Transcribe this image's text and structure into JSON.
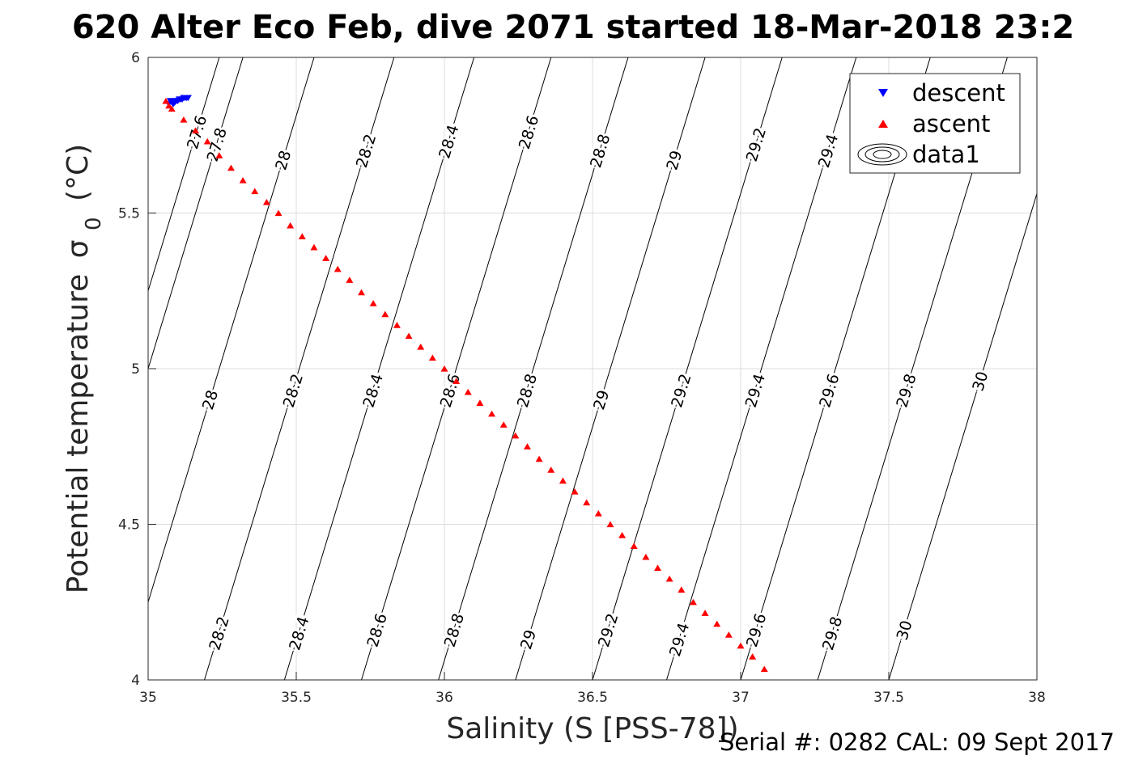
{
  "title": "620 Alter Eco Feb, dive 2071 started 18-Mar-2018 23:2",
  "footer": "Serial #: 0282  CAL: 09 Sept 2017",
  "chart_data": {
    "type": "scatter",
    "title": "620 Alter Eco Feb, dive 2071 started 18-Mar-2018 23:2",
    "xlabel": "Salinity (S [PSS-78])",
    "ylabel": "Potential temperature",
    "ylabel_sub": "0",
    "ylabel_symbol": "σ",
    "ylabel_unit": "(°C)",
    "xlim": [
      35,
      38
    ],
    "ylim": [
      4,
      6
    ],
    "xticks": [
      35,
      35.5,
      36,
      36.5,
      37,
      37.5,
      38
    ],
    "xtick_labels": [
      "35",
      "35.5",
      "36",
      "36.5",
      "37",
      "37.5",
      "38"
    ],
    "yticks": [
      4,
      4.5,
      5,
      5.5,
      6
    ],
    "ytick_labels": [
      "4",
      "4.5",
      "5",
      "5.5",
      "6"
    ],
    "grid": true,
    "legend": {
      "placement": "top-right",
      "entries": [
        "descent",
        "ascent",
        "data1"
      ]
    },
    "series": [
      {
        "name": "descent",
        "marker": "triangle-down",
        "color": "#0000ff",
        "x": [
          35.07,
          35.075,
          35.08,
          35.085,
          35.09,
          35.095,
          35.1,
          35.105,
          35.11,
          35.115,
          35.12,
          35.125,
          35.13,
          35.135
        ],
        "y": [
          5.85,
          5.86,
          5.855,
          5.85,
          5.855,
          5.86,
          5.86,
          5.865,
          5.865,
          5.865,
          5.87,
          5.87,
          5.87,
          5.87
        ]
      },
      {
        "name": "ascent",
        "marker": "triangle-up",
        "color": "#ff0000",
        "x": [
          35.06,
          35.07,
          35.08,
          35.12,
          35.16,
          35.2,
          35.24,
          35.28,
          35.32,
          35.36,
          35.4,
          35.44,
          35.48,
          35.52,
          35.56,
          35.6,
          35.64,
          35.68,
          35.72,
          35.76,
          35.8,
          35.84,
          35.88,
          35.92,
          35.96,
          36.0,
          36.04,
          36.08,
          36.12,
          36.16,
          36.2,
          36.24,
          36.28,
          36.32,
          36.36,
          36.4,
          36.44,
          36.48,
          36.52,
          36.56,
          36.6,
          36.64,
          36.68,
          36.72,
          36.76,
          36.8,
          36.84,
          36.88,
          36.92,
          36.96,
          37.0,
          37.04,
          37.08
        ],
        "y": [
          5.86,
          5.845,
          5.835,
          5.8,
          5.765,
          5.73,
          5.685,
          5.645,
          5.605,
          5.57,
          5.535,
          5.5,
          5.46,
          5.425,
          5.39,
          5.355,
          5.32,
          5.285,
          5.245,
          5.21,
          5.175,
          5.14,
          5.105,
          5.07,
          5.035,
          5.0,
          4.96,
          4.925,
          4.89,
          4.855,
          4.82,
          4.785,
          4.75,
          4.71,
          4.675,
          4.64,
          4.605,
          4.57,
          4.535,
          4.5,
          4.465,
          4.43,
          4.395,
          4.36,
          4.325,
          4.29,
          4.25,
          4.215,
          4.18,
          4.145,
          4.11,
          4.075,
          4.035
        ]
      }
    ],
    "contours": [
      {
        "value": 27.6,
        "s_at_t4": 34.6,
        "labels": [
          "27.6"
        ],
        "label_t": [
          5.76
        ]
      },
      {
        "value": 27.8,
        "s_at_t4": 34.68,
        "labels": [
          "27.8",
          "27.8",
          "27.8"
        ],
        "label_t": [
          4.15,
          4.93,
          5.72
        ]
      },
      {
        "value": 28.0,
        "s_at_t4": 34.92,
        "labels": [
          "28",
          "28",
          "28"
        ],
        "label_t": [
          4.15,
          4.9,
          5.67
        ]
      },
      {
        "value": 28.2,
        "s_at_t4": 35.19,
        "labels": [
          "28.2",
          "28.2",
          "28.2"
        ],
        "label_t": [
          4.15,
          4.93,
          5.7
        ]
      },
      {
        "value": 28.4,
        "s_at_t4": 35.46,
        "labels": [
          "28.4",
          "28.4",
          "28.4"
        ],
        "label_t": [
          4.15,
          4.93,
          5.73
        ]
      },
      {
        "value": 28.6,
        "s_at_t4": 35.72,
        "labels": [
          "28.6",
          "28.6",
          "28.6"
        ],
        "label_t": [
          4.16,
          4.93,
          5.76
        ]
      },
      {
        "value": 28.8,
        "s_at_t4": 35.98,
        "labels": [
          "28.8",
          "28.8",
          "28.8"
        ],
        "label_t": [
          4.16,
          4.93,
          5.7
        ]
      },
      {
        "value": 29.0,
        "s_at_t4": 36.24,
        "labels": [
          "29",
          "29",
          "29"
        ],
        "label_t": [
          4.13,
          4.9,
          5.67
        ]
      },
      {
        "value": 29.2,
        "s_at_t4": 36.5,
        "labels": [
          "29.2",
          "29.2",
          "29.2"
        ],
        "label_t": [
          4.16,
          4.93,
          5.72
        ]
      },
      {
        "value": 29.4,
        "s_at_t4": 36.75,
        "labels": [
          "29.4",
          "29.4",
          "29.4"
        ],
        "label_t": [
          4.13,
          4.93,
          5.7
        ]
      },
      {
        "value": 29.6,
        "s_at_t4": 37.0,
        "labels": [
          "29.6",
          "29.6"
        ],
        "label_t": [
          4.16,
          4.93
        ]
      },
      {
        "value": 29.8,
        "s_at_t4": 37.26,
        "labels": [
          "29.8",
          "29.8"
        ],
        "label_t": [
          4.15,
          4.93
        ]
      },
      {
        "value": 30.0,
        "s_at_t4": 37.5,
        "labels": [
          "30",
          "30"
        ],
        "label_t": [
          4.16,
          4.96
        ]
      }
    ],
    "contour_slope_s_per_degC": 0.32
  }
}
